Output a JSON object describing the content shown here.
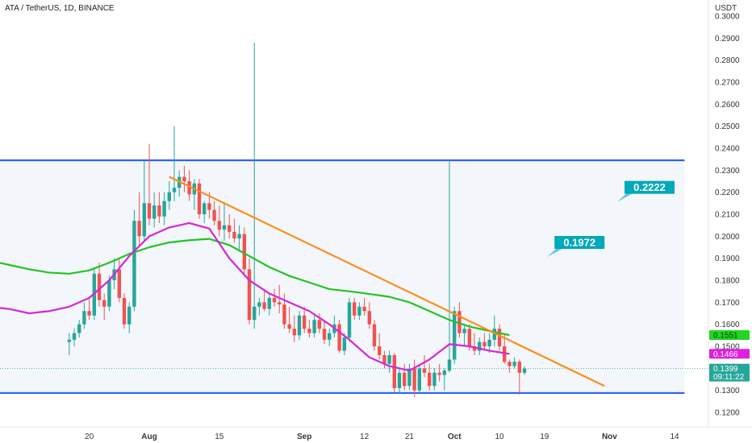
{
  "header": {
    "title": "ATA / TetherUS, 1D, BINANCE",
    "currency": "USDT"
  },
  "callouts": [
    {
      "label": "0.2222",
      "price": 0.2222,
      "color": "#00a8bb"
    },
    {
      "label": "0.1972",
      "price": 0.1972,
      "color": "#00a8bb"
    }
  ],
  "tags": [
    {
      "name": "green-ma",
      "price": 0.1551,
      "color": "#22d622",
      "text_color": "#0b3d0b",
      "lines": [
        "0.1551"
      ]
    },
    {
      "name": "magenta-ma",
      "price": 0.1466,
      "color": "#e020e0",
      "text_color": "#ffffff",
      "lines": [
        "0.1466"
      ]
    },
    {
      "name": "last-price",
      "price": 0.1399,
      "color": "#26a69a",
      "text_color": "#ffffff",
      "lines": [
        "0.1399",
        "09:11:22"
      ]
    }
  ],
  "chart_data": {
    "type": "candlestick",
    "title": "ATA / TetherUS, 1D, BINANCE",
    "ylabel": "USDT",
    "ylim": [
      0.1155,
      0.3025
    ],
    "price_ticks": [
      "0.3000",
      "0.2900",
      "0.2800",
      "0.2700",
      "0.2600",
      "0.2500",
      "0.2400",
      "0.2300",
      "0.2200",
      "0.2100",
      "0.2000",
      "0.1900",
      "0.1800",
      "0.1700",
      "0.1600",
      "0.1500",
      "0.1400",
      "0.1300",
      "0.1200"
    ],
    "date_ticks": [
      {
        "label": "20",
        "day": 20,
        "bold": false
      },
      {
        "label": "Aug",
        "day": 32,
        "bold": true
      },
      {
        "label": "15",
        "day": 46,
        "bold": false
      },
      {
        "label": "Sep",
        "day": 63,
        "bold": true
      },
      {
        "label": "12",
        "day": 75,
        "bold": false
      },
      {
        "label": "21",
        "day": 84,
        "bold": false
      },
      {
        "label": "Oct",
        "day": 93,
        "bold": true
      },
      {
        "label": "10",
        "day": 102,
        "bold": false
      },
      {
        "label": "19",
        "day": 111,
        "bold": false
      },
      {
        "label": "Nov",
        "day": 124,
        "bold": true
      },
      {
        "label": "14",
        "day": 137,
        "bold": false
      }
    ],
    "candle_start_day": 16,
    "candles": [
      [
        0.152,
        0.156,
        0.146,
        0.153
      ],
      [
        0.153,
        0.158,
        0.15,
        0.156
      ],
      [
        0.156,
        0.162,
        0.154,
        0.16
      ],
      [
        0.16,
        0.17,
        0.158,
        0.166
      ],
      [
        0.166,
        0.172,
        0.162,
        0.164
      ],
      [
        0.164,
        0.186,
        0.162,
        0.183
      ],
      [
        0.183,
        0.188,
        0.168,
        0.171
      ],
      [
        0.171,
        0.174,
        0.162,
        0.168
      ],
      [
        0.168,
        0.182,
        0.166,
        0.18
      ],
      [
        0.18,
        0.19,
        0.176,
        0.185
      ],
      [
        0.185,
        0.19,
        0.17,
        0.172
      ],
      [
        0.172,
        0.174,
        0.158,
        0.16
      ],
      [
        0.16,
        0.17,
        0.156,
        0.168
      ],
      [
        0.168,
        0.212,
        0.166,
        0.207
      ],
      [
        0.207,
        0.22,
        0.196,
        0.2
      ],
      [
        0.2,
        0.234,
        0.198,
        0.215
      ],
      [
        0.215,
        0.242,
        0.205,
        0.208
      ],
      [
        0.208,
        0.22,
        0.204,
        0.214
      ],
      [
        0.214,
        0.22,
        0.206,
        0.209
      ],
      [
        0.209,
        0.22,
        0.205,
        0.216
      ],
      [
        0.216,
        0.225,
        0.212,
        0.22
      ],
      [
        0.22,
        0.25,
        0.216,
        0.222
      ],
      [
        0.222,
        0.23,
        0.218,
        0.227
      ],
      [
        0.227,
        0.232,
        0.22,
        0.225
      ],
      [
        0.225,
        0.23,
        0.216,
        0.219
      ],
      [
        0.219,
        0.226,
        0.212,
        0.224
      ],
      [
        0.224,
        0.226,
        0.208,
        0.21
      ],
      [
        0.21,
        0.216,
        0.206,
        0.215
      ],
      [
        0.215,
        0.22,
        0.208,
        0.212
      ],
      [
        0.212,
        0.216,
        0.205,
        0.207
      ],
      [
        0.207,
        0.214,
        0.2,
        0.203
      ],
      [
        0.203,
        0.215,
        0.198,
        0.205
      ],
      [
        0.205,
        0.21,
        0.199,
        0.202
      ],
      [
        0.202,
        0.208,
        0.197,
        0.199
      ],
      [
        0.199,
        0.205,
        0.193,
        0.201
      ],
      [
        0.201,
        0.204,
        0.182,
        0.185
      ],
      [
        0.185,
        0.19,
        0.16,
        0.162
      ],
      [
        0.162,
        0.288,
        0.158,
        0.168
      ],
      [
        0.168,
        0.172,
        0.164,
        0.17
      ],
      [
        0.17,
        0.176,
        0.166,
        0.167
      ],
      [
        0.167,
        0.174,
        0.164,
        0.172
      ],
      [
        0.172,
        0.176,
        0.168,
        0.17
      ],
      [
        0.17,
        0.178,
        0.165,
        0.169
      ],
      [
        0.169,
        0.174,
        0.158,
        0.16
      ],
      [
        0.16,
        0.168,
        0.156,
        0.158
      ],
      [
        0.158,
        0.164,
        0.152,
        0.155
      ],
      [
        0.155,
        0.166,
        0.153,
        0.164
      ],
      [
        0.164,
        0.168,
        0.156,
        0.158
      ],
      [
        0.158,
        0.162,
        0.154,
        0.156
      ],
      [
        0.156,
        0.164,
        0.154,
        0.162
      ],
      [
        0.162,
        0.165,
        0.156,
        0.158
      ],
      [
        0.158,
        0.162,
        0.151,
        0.153
      ],
      [
        0.153,
        0.158,
        0.15,
        0.156
      ],
      [
        0.156,
        0.164,
        0.154,
        0.16
      ],
      [
        0.16,
        0.162,
        0.147,
        0.148
      ],
      [
        0.148,
        0.156,
        0.146,
        0.154
      ],
      [
        0.154,
        0.172,
        0.152,
        0.17
      ],
      [
        0.17,
        0.172,
        0.162,
        0.164
      ],
      [
        0.164,
        0.17,
        0.162,
        0.168
      ],
      [
        0.168,
        0.172,
        0.164,
        0.166
      ],
      [
        0.166,
        0.17,
        0.158,
        0.16
      ],
      [
        0.16,
        0.162,
        0.148,
        0.15
      ],
      [
        0.15,
        0.156,
        0.144,
        0.146
      ],
      [
        0.146,
        0.148,
        0.14,
        0.142
      ],
      [
        0.142,
        0.148,
        0.138,
        0.146
      ],
      [
        0.146,
        0.147,
        0.129,
        0.131
      ],
      [
        0.131,
        0.14,
        0.129,
        0.138
      ],
      [
        0.138,
        0.142,
        0.13,
        0.132
      ],
      [
        0.132,
        0.142,
        0.13,
        0.14
      ],
      [
        0.14,
        0.144,
        0.127,
        0.13
      ],
      [
        0.13,
        0.142,
        0.129,
        0.14
      ],
      [
        0.14,
        0.146,
        0.136,
        0.138
      ],
      [
        0.138,
        0.142,
        0.13,
        0.132
      ],
      [
        0.132,
        0.14,
        0.13,
        0.138
      ],
      [
        0.138,
        0.142,
        0.134,
        0.137
      ],
      [
        0.137,
        0.14,
        0.13,
        0.139
      ],
      [
        0.139,
        0.234,
        0.138,
        0.144
      ],
      [
        0.144,
        0.168,
        0.142,
        0.166
      ],
      [
        0.166,
        0.17,
        0.154,
        0.156
      ],
      [
        0.156,
        0.16,
        0.15,
        0.158
      ],
      [
        0.158,
        0.16,
        0.148,
        0.15
      ],
      [
        0.15,
        0.156,
        0.146,
        0.148
      ],
      [
        0.148,
        0.154,
        0.146,
        0.152
      ],
      [
        0.152,
        0.156,
        0.148,
        0.15
      ],
      [
        0.15,
        0.156,
        0.147,
        0.153
      ],
      [
        0.153,
        0.164,
        0.15,
        0.158
      ],
      [
        0.158,
        0.16,
        0.148,
        0.15
      ],
      [
        0.15,
        0.156,
        0.142,
        0.143
      ],
      [
        0.143,
        0.144,
        0.138,
        0.141
      ],
      [
        0.141,
        0.145,
        0.14,
        0.143
      ],
      [
        0.143,
        0.144,
        0.128,
        0.138
      ],
      [
        0.138,
        0.141,
        0.137,
        0.1399
      ]
    ],
    "series": [
      {
        "name": "",
        "color": "#22c422",
        "x": [
          0,
          4,
          8,
          12,
          16,
          20,
          24,
          28,
          32,
          36,
          40,
          44,
          48,
          52,
          56,
          60,
          64,
          68,
          72,
          76,
          80,
          84,
          88,
          92,
          96,
          100,
          104
        ],
        "y": [
          0.189,
          0.187,
          0.185,
          0.1835,
          0.183,
          0.1845,
          0.188,
          0.192,
          0.195,
          0.1972,
          0.1982,
          0.1988,
          0.196,
          0.191,
          0.186,
          0.182,
          0.179,
          0.176,
          0.175,
          0.1738,
          0.1725,
          0.17,
          0.166,
          0.162,
          0.159,
          0.157,
          0.1551
        ]
      },
      {
        "name": "",
        "color": "#d626d6",
        "x": [
          0,
          4,
          8,
          12,
          16,
          20,
          24,
          28,
          32,
          36,
          40,
          44,
          48,
          52,
          56,
          60,
          64,
          68,
          72,
          76,
          80,
          84,
          88,
          92,
          96,
          100,
          104
        ],
        "y": [
          0.168,
          0.167,
          0.165,
          0.166,
          0.168,
          0.172,
          0.18,
          0.191,
          0.2,
          0.204,
          0.206,
          0.2035,
          0.19,
          0.18,
          0.174,
          0.17,
          0.166,
          0.16,
          0.153,
          0.145,
          0.141,
          0.139,
          0.144,
          0.151,
          0.15,
          0.148,
          0.1466
        ]
      }
    ],
    "trendline": {
      "color": "#ff8c1a",
      "from": [
        36,
        0.227
      ],
      "to": [
        123,
        0.132
      ]
    },
    "horizontal_levels": [
      {
        "price": 0.2345,
        "color": "#2962ff"
      },
      {
        "price": 0.1288,
        "color": "#2962ff"
      }
    ],
    "range_box": {
      "from_day": 0,
      "to_day": 139,
      "top": 0.2345,
      "bottom": 0.1288,
      "fill": "#f3f6fa"
    },
    "last_price_line": 0.1399,
    "up_color": "#26a69a",
    "down_color": "#ef5350"
  }
}
